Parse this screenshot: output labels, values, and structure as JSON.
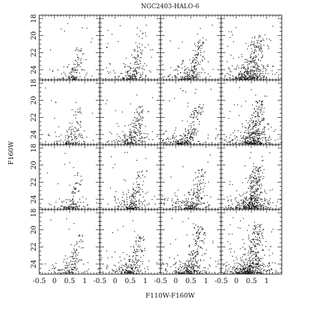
{
  "chart_data": {
    "type": "scatter",
    "title": "NGC2403-HALO-6",
    "xlabel": "F110W-F160W",
    "ylabel": "F160W",
    "grid": {
      "rows": 4,
      "cols": 4
    },
    "xlim": [
      -0.5,
      1.5
    ],
    "ylim": [
      25.2,
      17.6
    ],
    "y_inverted": true,
    "x_tick_labels": [
      "-0.5",
      "0",
      "0.5",
      "1"
    ],
    "x_ticks": [
      -0.5,
      0,
      0.5,
      1
    ],
    "y_tick_labels": [
      "18",
      "20",
      "22",
      "24"
    ],
    "y_ticks": [
      18,
      20,
      22,
      24
    ],
    "panels": [
      {
        "row": 0,
        "col": 0,
        "n": 120,
        "rgb_x": 0.85,
        "rgb_spread": 0.15,
        "tip_mag": 21.3,
        "tail_x": 0.5,
        "faint_width": 0.35
      },
      {
        "row": 0,
        "col": 1,
        "n": 200,
        "rgb_x": 0.9,
        "rgb_spread": 0.14,
        "tip_mag": 19.4,
        "tail_x": 0.45,
        "faint_width": 0.4
      },
      {
        "row": 0,
        "col": 2,
        "n": 240,
        "rgb_x": 0.85,
        "rgb_spread": 0.15,
        "tip_mag": 20.5,
        "tail_x": 0.35,
        "faint_width": 0.45
      },
      {
        "row": 0,
        "col": 3,
        "n": 420,
        "rgb_x": 0.75,
        "rgb_spread": 0.22,
        "tip_mag": 20.0,
        "tail_x": 0.4,
        "faint_width": 0.5
      },
      {
        "row": 1,
        "col": 0,
        "n": 140,
        "rgb_x": 0.85,
        "rgb_spread": 0.15,
        "tip_mag": 20.8,
        "tail_x": 0.45,
        "faint_width": 0.35
      },
      {
        "row": 1,
        "col": 1,
        "n": 230,
        "rgb_x": 0.85,
        "rgb_spread": 0.16,
        "tip_mag": 20.7,
        "tail_x": 0.45,
        "faint_width": 0.4
      },
      {
        "row": 1,
        "col": 2,
        "n": 260,
        "rgb_x": 0.8,
        "rgb_spread": 0.16,
        "tip_mag": 20.3,
        "tail_x": 0.1,
        "faint_width": 0.55
      },
      {
        "row": 1,
        "col": 3,
        "n": 430,
        "rgb_x": 0.75,
        "rgb_spread": 0.22,
        "tip_mag": 20.0,
        "tail_x": 0.45,
        "faint_width": 0.5
      },
      {
        "row": 2,
        "col": 0,
        "n": 130,
        "rgb_x": 0.85,
        "rgb_spread": 0.15,
        "tip_mag": 20.8,
        "tail_x": 0.5,
        "faint_width": 0.35
      },
      {
        "row": 2,
        "col": 1,
        "n": 210,
        "rgb_x": 0.85,
        "rgb_spread": 0.15,
        "tip_mag": 20.6,
        "tail_x": 0.5,
        "faint_width": 0.4
      },
      {
        "row": 2,
        "col": 2,
        "n": 240,
        "rgb_x": 0.85,
        "rgb_spread": 0.16,
        "tip_mag": 20.5,
        "tail_x": 0.4,
        "faint_width": 0.45
      },
      {
        "row": 2,
        "col": 3,
        "n": 460,
        "rgb_x": 0.7,
        "rgb_spread": 0.2,
        "tip_mag": 20.2,
        "tail_x": 0.45,
        "faint_width": 0.45
      },
      {
        "row": 3,
        "col": 0,
        "n": 150,
        "rgb_x": 0.85,
        "rgb_spread": 0.15,
        "tip_mag": 20.5,
        "tail_x": 0.4,
        "faint_width": 0.4
      },
      {
        "row": 3,
        "col": 1,
        "n": 230,
        "rgb_x": 0.85,
        "rgb_spread": 0.15,
        "tip_mag": 20.6,
        "tail_x": 0.35,
        "faint_width": 0.45
      },
      {
        "row": 3,
        "col": 2,
        "n": 330,
        "rgb_x": 0.8,
        "rgb_spread": 0.2,
        "tip_mag": 19.6,
        "tail_x": 0.35,
        "faint_width": 0.5
      },
      {
        "row": 3,
        "col": 3,
        "n": 520,
        "rgb_x": 0.7,
        "rgb_spread": 0.22,
        "tip_mag": 19.3,
        "tail_x": 0.35,
        "faint_width": 0.5
      }
    ],
    "point_color": "#111111",
    "frame_color": "#111111"
  }
}
